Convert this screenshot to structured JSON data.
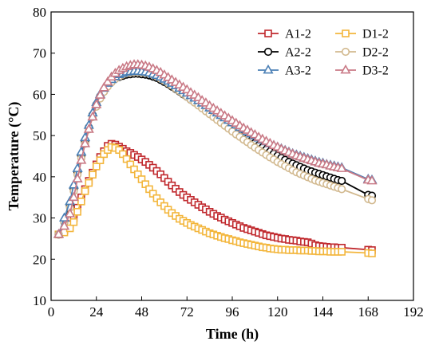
{
  "chart_data": {
    "type": "line",
    "xlabel": "Time (h)",
    "ylabel": "Temperature (°C)",
    "xlim": [
      0,
      192
    ],
    "ylim": [
      10,
      80
    ],
    "xticks": [
      0,
      24,
      48,
      72,
      96,
      120,
      144,
      168,
      192
    ],
    "yticks": [
      10,
      20,
      30,
      40,
      50,
      60,
      70,
      80
    ],
    "grid": false,
    "legend_position": "top-right",
    "series": [
      {
        "name": "A1-2",
        "color": "#c0282d",
        "marker": "square",
        "filled": false,
        "x": [
          4,
          7,
          10,
          12,
          14,
          16,
          18,
          20,
          22,
          24,
          26,
          28,
          30,
          32,
          34,
          36,
          38,
          40,
          42,
          44,
          46,
          48,
          50,
          52,
          54,
          56,
          58,
          60,
          62,
          64,
          66,
          68,
          70,
          72,
          74,
          76,
          78,
          80,
          82,
          84,
          86,
          88,
          90,
          92,
          94,
          96,
          98,
          100,
          102,
          104,
          106,
          108,
          110,
          112,
          114,
          116,
          118,
          120,
          122,
          124,
          126,
          128,
          130,
          132,
          134,
          136,
          138,
          140,
          142,
          144,
          146,
          148,
          150,
          152,
          154,
          168,
          170
        ],
        "y": [
          26,
          27,
          28.5,
          30,
          32.5,
          35,
          37,
          39,
          41,
          43,
          44.8,
          46.2,
          47.5,
          48,
          47.8,
          47.3,
          46.8,
          46.2,
          45.8,
          45.3,
          44.8,
          44.2,
          43.6,
          42.9,
          42.2,
          41.4,
          40.6,
          39.7,
          38.8,
          37.9,
          37.1,
          36.3,
          35.6,
          35,
          34.4,
          33.8,
          33.2,
          32.6,
          32.1,
          31.5,
          31,
          30.5,
          30.1,
          29.6,
          29.2,
          28.8,
          28.4,
          28,
          27.6,
          27.3,
          27,
          26.7,
          26.4,
          26.1,
          25.8,
          25.6,
          25.4,
          25.2,
          25,
          24.9,
          24.7,
          24.6,
          24.5,
          24.3,
          24.2,
          24.1,
          23.8,
          23.4,
          23.2,
          23.1,
          23,
          22.9,
          22.9,
          22.8,
          22.8,
          22.3,
          22.2
        ]
      },
      {
        "name": "A2-2",
        "color": "#000000",
        "marker": "circle",
        "filled": false,
        "x": [
          4,
          7,
          10,
          12,
          14,
          16,
          18,
          20,
          22,
          24,
          26,
          28,
          30,
          32,
          34,
          36,
          38,
          40,
          42,
          44,
          46,
          48,
          50,
          52,
          54,
          56,
          58,
          60,
          62,
          64,
          66,
          68,
          70,
          72,
          74,
          76,
          78,
          80,
          82,
          84,
          86,
          88,
          90,
          92,
          94,
          96,
          98,
          100,
          102,
          104,
          106,
          108,
          110,
          112,
          114,
          116,
          118,
          120,
          122,
          124,
          126,
          128,
          130,
          132,
          134,
          136,
          138,
          140,
          142,
          144,
          146,
          148,
          150,
          152,
          154,
          168,
          170
        ],
        "y": [
          26,
          29,
          33,
          37,
          41,
          45,
          48.5,
          52,
          55,
          57.5,
          59.5,
          61,
          62.2,
          63.1,
          63.8,
          64.2,
          64.5,
          64.8,
          64.9,
          65,
          65,
          64.9,
          64.8,
          64.6,
          64.3,
          64,
          63.5,
          63,
          62.5,
          61.9,
          61.3,
          60.7,
          60,
          59.4,
          58.7,
          58.1,
          57.4,
          56.8,
          56.1,
          55.5,
          54.8,
          54.2,
          53.6,
          53,
          52.3,
          51.7,
          51.1,
          50.5,
          49.9,
          49.3,
          48.7,
          48.2,
          47.6,
          47.1,
          46.6,
          46.1,
          45.6,
          45.1,
          44.6,
          44.1,
          43.6,
          43.2,
          42.8,
          42.4,
          42,
          41.6,
          41.3,
          41,
          40.7,
          40.4,
          40.1,
          39.8,
          39.5,
          39.2,
          39,
          35.6,
          35.4
        ]
      },
      {
        "name": "A3-2",
        "color": "#4a7fb5",
        "marker": "triangle",
        "filled": false,
        "x": [
          4,
          7,
          10,
          12,
          14,
          16,
          18,
          20,
          22,
          24,
          26,
          28,
          30,
          32,
          34,
          36,
          38,
          40,
          42,
          44,
          46,
          48,
          50,
          52,
          54,
          56,
          58,
          60,
          62,
          64,
          66,
          68,
          70,
          72,
          74,
          76,
          78,
          80,
          82,
          84,
          86,
          88,
          90,
          92,
          94,
          96,
          98,
          100,
          102,
          104,
          106,
          108,
          110,
          112,
          114,
          116,
          118,
          120,
          122,
          124,
          126,
          128,
          130,
          132,
          134,
          136,
          138,
          140,
          142,
          144,
          146,
          148,
          150,
          152,
          154,
          168,
          170
        ],
        "y": [
          26,
          30,
          34,
          38,
          42,
          46,
          49.5,
          52.5,
          55.5,
          58,
          60,
          61.5,
          62.7,
          63.6,
          64.3,
          64.8,
          65.1,
          65.4,
          65.5,
          65.6,
          65.6,
          65.5,
          65.4,
          65.2,
          64.9,
          64.6,
          64.2,
          63.7,
          63.2,
          62.7,
          62.1,
          61.5,
          60.9,
          60.3,
          59.7,
          59.1,
          58.5,
          57.9,
          57.3,
          56.7,
          56.1,
          55.5,
          54.9,
          54.3,
          53.7,
          53.1,
          52.6,
          52,
          51.5,
          50.9,
          50.4,
          49.9,
          49.4,
          48.9,
          48.5,
          48,
          47.6,
          47.2,
          46.8,
          46.4,
          46,
          45.6,
          45.3,
          45,
          44.7,
          44.4,
          44.1,
          43.8,
          43.5,
          43.3,
          43,
          42.8,
          42.6,
          42.4,
          42.2,
          39.4,
          39.2
        ]
      },
      {
        "name": "D1-2",
        "color": "#f3b63c",
        "marker": "square",
        "filled": false,
        "x": [
          4,
          7,
          10,
          12,
          14,
          16,
          18,
          20,
          22,
          24,
          26,
          28,
          30,
          32,
          34,
          36,
          38,
          40,
          42,
          44,
          46,
          48,
          50,
          52,
          54,
          56,
          58,
          60,
          62,
          64,
          66,
          68,
          70,
          72,
          74,
          76,
          78,
          80,
          82,
          84,
          86,
          88,
          90,
          92,
          94,
          96,
          98,
          100,
          102,
          104,
          106,
          108,
          110,
          112,
          114,
          116,
          118,
          120,
          122,
          124,
          126,
          128,
          130,
          132,
          134,
          136,
          138,
          140,
          142,
          144,
          146,
          148,
          150,
          152,
          154,
          168,
          170
        ],
        "y": [
          26,
          26.5,
          27.5,
          29,
          31.5,
          34,
          36.5,
          38.5,
          40.5,
          42.5,
          44,
          45.5,
          46.5,
          47.2,
          47,
          46.5,
          45.5,
          44.3,
          43,
          41.8,
          40.6,
          39.4,
          38.2,
          37,
          35.9,
          34.8,
          33.8,
          32.9,
          32,
          31.2,
          30.5,
          29.8,
          29.3,
          28.8,
          28.3,
          27.9,
          27.5,
          27.1,
          26.7,
          26.3,
          26,
          25.7,
          25.4,
          25.1,
          24.9,
          24.6,
          24.4,
          24.1,
          23.9,
          23.7,
          23.5,
          23.3,
          23.1,
          22.9,
          22.8,
          22.6,
          22.5,
          22.4,
          22.3,
          22.3,
          22.2,
          22.2,
          22.2,
          22.1,
          22.1,
          22.1,
          22,
          22,
          21.9,
          21.9,
          21.9,
          21.8,
          21.8,
          21.8,
          21.8,
          21.5,
          21.4
        ]
      },
      {
        "name": "D2-2",
        "color": "#d2b98f",
        "marker": "circle",
        "filled": false,
        "x": [
          4,
          7,
          10,
          12,
          14,
          16,
          18,
          20,
          22,
          24,
          26,
          28,
          30,
          32,
          34,
          36,
          38,
          40,
          42,
          44,
          46,
          48,
          50,
          52,
          54,
          56,
          58,
          60,
          62,
          64,
          66,
          68,
          70,
          72,
          74,
          76,
          78,
          80,
          82,
          84,
          86,
          88,
          90,
          92,
          94,
          96,
          98,
          100,
          102,
          104,
          106,
          108,
          110,
          112,
          114,
          116,
          118,
          120,
          122,
          124,
          126,
          128,
          130,
          132,
          134,
          136,
          138,
          140,
          142,
          144,
          146,
          148,
          150,
          152,
          154,
          168,
          170
        ],
        "y": [
          26,
          29,
          32.5,
          36.5,
          40.5,
          44.5,
          48,
          51.5,
          54.5,
          57,
          59,
          60.6,
          61.9,
          62.9,
          63.7,
          64.3,
          64.8,
          65.1,
          65.3,
          65.4,
          65.4,
          65.3,
          65.2,
          65,
          64.7,
          64.3,
          63.8,
          63.3,
          62.7,
          62.1,
          61.4,
          60.8,
          60.1,
          59.4,
          58.7,
          58,
          57.3,
          56.6,
          55.9,
          55.2,
          54.5,
          53.8,
          53.1,
          52.4,
          51.7,
          51,
          50.3,
          49.7,
          49,
          48.4,
          47.7,
          47.1,
          46.5,
          45.9,
          45.3,
          44.7,
          44.2,
          43.6,
          43.1,
          42.6,
          42.1,
          41.6,
          41.1,
          40.7,
          40.3,
          39.9,
          39.5,
          39.1,
          38.8,
          38.5,
          38.2,
          37.9,
          37.6,
          37.3,
          37,
          34.6,
          34.3
        ]
      },
      {
        "name": "D3-2",
        "color": "#c97a86",
        "marker": "triangle",
        "filled": false,
        "x": [
          4,
          7,
          10,
          12,
          14,
          16,
          18,
          20,
          22,
          24,
          26,
          28,
          30,
          32,
          34,
          36,
          38,
          40,
          42,
          44,
          46,
          48,
          50,
          52,
          54,
          56,
          58,
          60,
          62,
          64,
          66,
          68,
          70,
          72,
          74,
          76,
          78,
          80,
          82,
          84,
          86,
          88,
          90,
          92,
          94,
          96,
          98,
          100,
          102,
          104,
          106,
          108,
          110,
          112,
          114,
          116,
          118,
          120,
          122,
          124,
          126,
          128,
          130,
          132,
          134,
          136,
          138,
          140,
          142,
          144,
          146,
          148,
          150,
          152,
          154,
          168,
          170
        ],
        "y": [
          26,
          28,
          31,
          35,
          39.5,
          44,
          48,
          51.5,
          54.5,
          57.5,
          59.8,
          61.6,
          63,
          64.2,
          65.1,
          65.8,
          66.3,
          66.7,
          67,
          67.2,
          67.2,
          67.1,
          66.9,
          66.6,
          66.2,
          65.8,
          65.3,
          64.7,
          64.1,
          63.5,
          62.9,
          62.3,
          61.7,
          61.1,
          60.4,
          59.8,
          59.2,
          58.5,
          57.9,
          57.2,
          56.6,
          56,
          55.4,
          54.8,
          54.2,
          53.6,
          53,
          52.4,
          51.8,
          51.3,
          50.7,
          50.2,
          49.6,
          49.1,
          48.6,
          48.1,
          47.6,
          47.2,
          46.7,
          46.3,
          45.9,
          45.5,
          45.1,
          44.8,
          44.5,
          44.2,
          43.9,
          43.6,
          43.3,
          43.1,
          42.9,
          42.6,
          42.4,
          42.2,
          42,
          39.2,
          39
        ]
      }
    ]
  }
}
